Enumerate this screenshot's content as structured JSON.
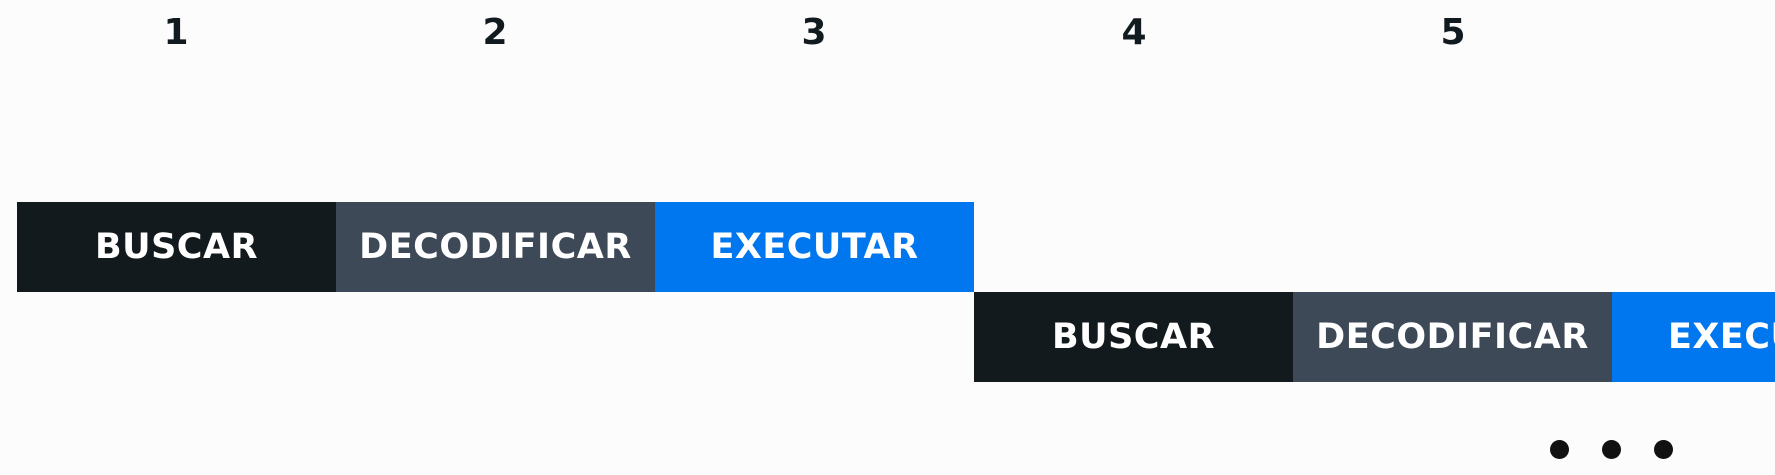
{
  "cycle_numbers": [
    "1",
    "2",
    "3",
    "4",
    "5"
  ],
  "rows": [
    {
      "stages": [
        {
          "label": "BUSCAR",
          "color": "#131a1d"
        },
        {
          "label": "DECODIFICAR",
          "color": "#3d4957"
        },
        {
          "label": "EXECUTAR",
          "color": "#0077ee"
        }
      ]
    },
    {
      "stages": [
        {
          "label": "BUSCAR",
          "color": "#131a1d"
        },
        {
          "label": "DECODIFICAR",
          "color": "#3d4957"
        },
        {
          "label": "EXECUTAR",
          "color": "#0077ee"
        }
      ]
    }
  ],
  "continuation": "ellipsis-dots"
}
